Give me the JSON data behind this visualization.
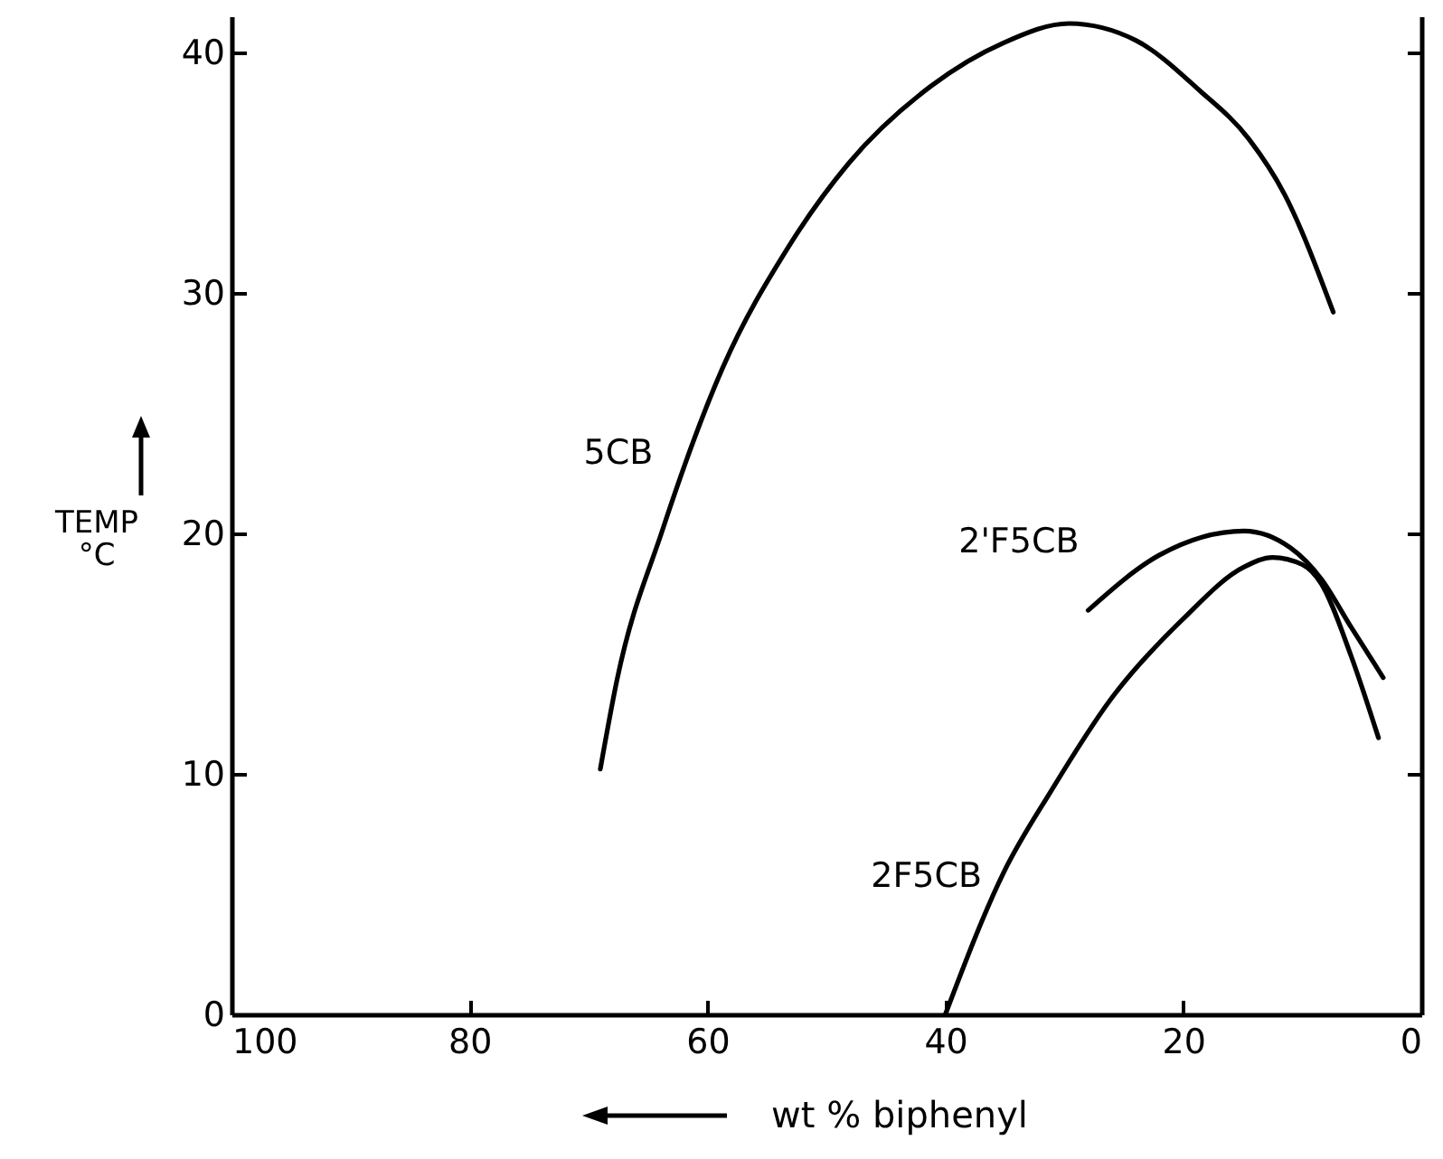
{
  "chart_data": {
    "type": "line",
    "xlabel": "wt % biphenyl",
    "ylabel": "TEMP °C",
    "xlim": [
      100,
      0
    ],
    "xticks": [
      100,
      80,
      60,
      40,
      20,
      0
    ],
    "ylim": [
      0,
      41.5
    ],
    "yticks": [
      0,
      10,
      20,
      30,
      40
    ],
    "grid": false,
    "line_style": "solid",
    "series": [
      {
        "name": "5CB",
        "color": "#000000",
        "x": [
          69,
          67.6,
          63.8,
          58.7,
          53.2,
          48.1,
          41.2,
          35.1,
          29.6,
          24,
          18.6,
          14.5,
          11.5,
          7.4
        ],
        "values": [
          10.2,
          13.9,
          20.1,
          26.9,
          31.9,
          35.4,
          38.6,
          40.4,
          41.2,
          40.5,
          38.4,
          36.4,
          34.1,
          29.2
        ]
      },
      {
        "name": "2'F5CB",
        "color": "#000000",
        "x": [
          28,
          22,
          14.9,
          11,
          8.4,
          5.9,
          3.2
        ],
        "values": [
          16.8,
          19.1,
          20.1,
          19.4,
          18.1,
          16.1,
          14.0
        ]
      },
      {
        "name": "2F5CB",
        "color": "#000000",
        "x": [
          40,
          35.1,
          31.1,
          26.1,
          20.1,
          14.9,
          12.5,
          10,
          8.4,
          5.9,
          3.6
        ],
        "values": [
          0,
          5.9,
          9.3,
          13.1,
          16.4,
          18.6,
          19.0,
          18.7,
          17.9,
          14.9,
          11.5
        ]
      }
    ]
  }
}
